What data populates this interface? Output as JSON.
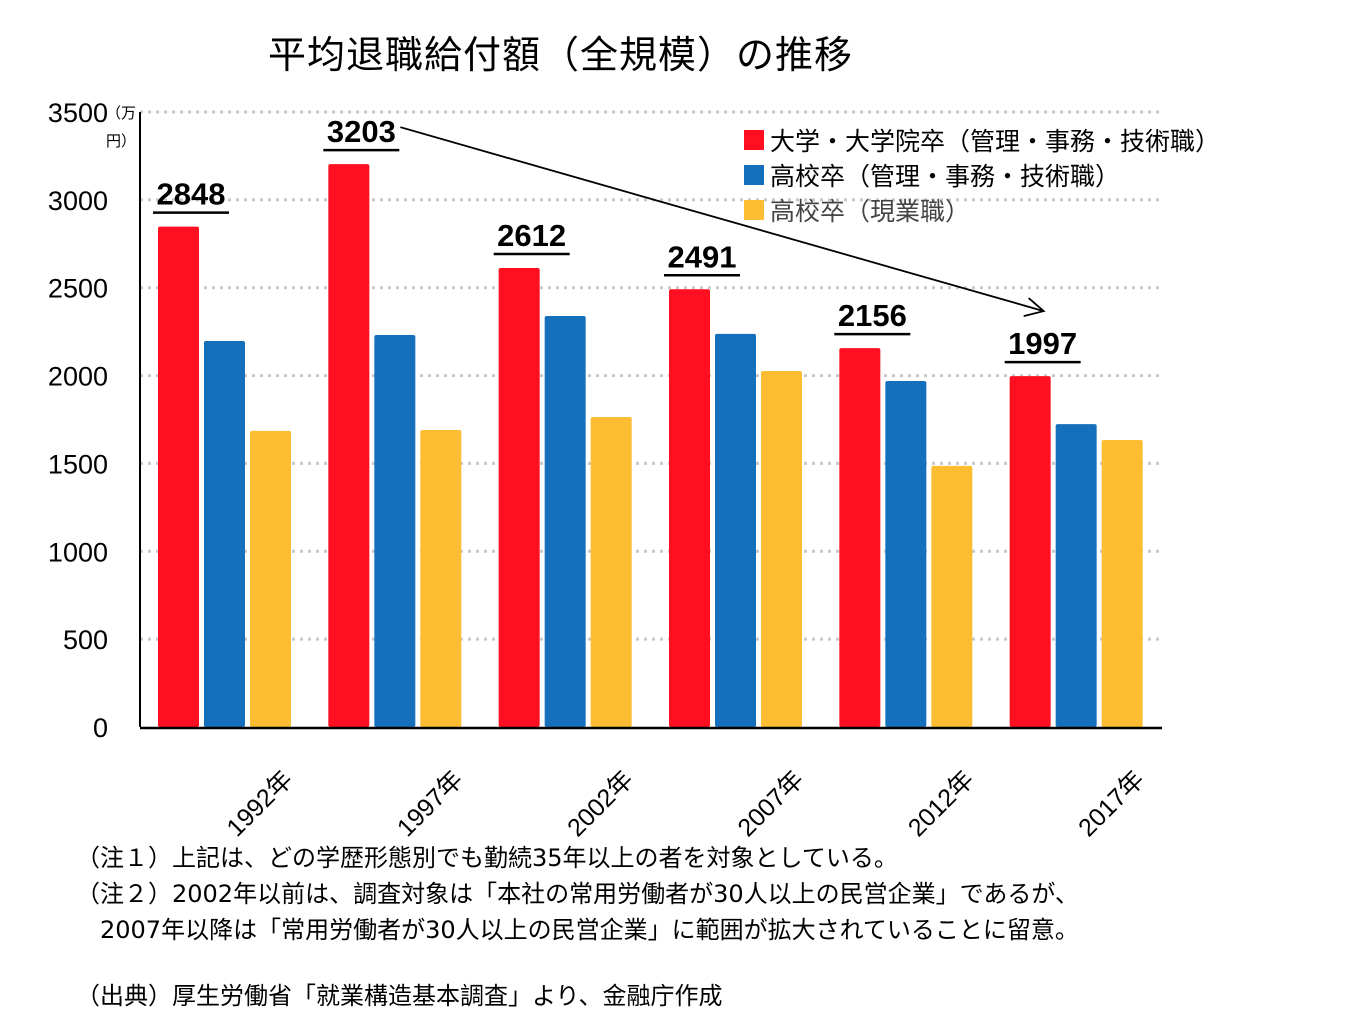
{
  "chart_data": {
    "type": "bar",
    "title": "平均退職給付額（全規模）の推移",
    "ylabel": "（万円）",
    "unit_line1": "（万",
    "unit_line2": "円）",
    "xlabel": "",
    "ylim": [
      0,
      3500
    ],
    "yticks": [
      0,
      500,
      1000,
      1500,
      2000,
      2500,
      3000,
      3500
    ],
    "grid": true,
    "legend_position": "top-right",
    "categories": [
      "1992年",
      "1997年",
      "2002年",
      "2007年",
      "2012年",
      "2017年"
    ],
    "series": [
      {
        "name": "大学・大学院卒（管理・事務・技術職）",
        "color": "#ff0f1f",
        "values": [
          2848,
          3203,
          2612,
          2491,
          2156,
          1997
        ]
      },
      {
        "name": "高校卒（管理・事務・技術職）",
        "color": "#1470bd",
        "values": [
          2197,
          2231,
          2339,
          2237,
          1969,
          1724
        ]
      },
      {
        "name": "高校卒（現業職）",
        "color": "#fdbd33",
        "values": [
          1685,
          1690,
          1764,
          2026,
          1486,
          1633
        ]
      }
    ],
    "data_labels": [
      "2848",
      "3203",
      "2612",
      "2491",
      "2156",
      "1997"
    ],
    "annotation": {
      "type": "arrow",
      "from_category": "1997年",
      "to_category": "2017年",
      "description": "decline from 3203 to 1997"
    }
  },
  "notes": [
    "（注１）上記は、どの学歴形態別でも勤続35年以上の者を対象としている。",
    "（注２）2002年以前は、調査対象は「本社の常用労働者が30人以上の民営企業」であるが、",
    "2007年以降は「常用労働者が30人以上の民営企業」に範囲が拡大されていることに留意。"
  ],
  "source": "（出典）厚生労働省「就業構造基本調査」より、金融庁作成"
}
